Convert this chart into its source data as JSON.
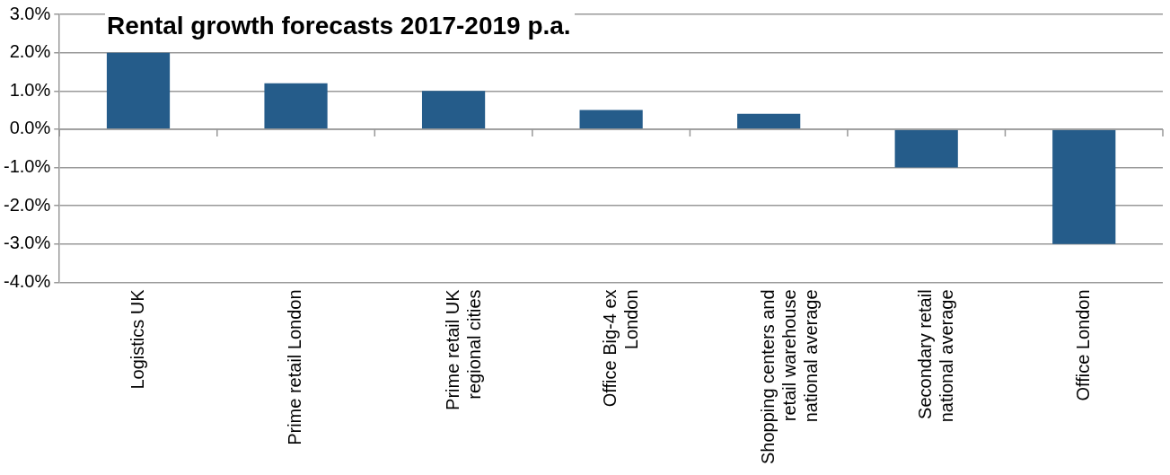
{
  "chart_data": {
    "type": "bar",
    "title": "Rental growth forecasts 2017-2019 p.a.",
    "categories": [
      "Logistics UK",
      "Prime retail London",
      "Prime retail UK\nregional cities",
      "Office Big-4 ex\nLondon",
      "Shopping centers and\nretail warehouse\nnational average",
      "Secondary retail\nnational average",
      "Office London"
    ],
    "values": [
      2.0,
      1.2,
      1.0,
      0.5,
      0.4,
      -1.0,
      -3.0
    ],
    "color": "#255c8a",
    "ylim": [
      -4,
      3
    ],
    "yticks": [
      {
        "value": 3,
        "label": "3.0%"
      },
      {
        "value": 2,
        "label": "2.0%"
      },
      {
        "value": 1,
        "label": "1.0%"
      },
      {
        "value": 0,
        "label": "0.0%"
      },
      {
        "value": -1,
        "label": "-1.0%"
      },
      {
        "value": -2,
        "label": "-2.0%"
      },
      {
        "value": -3,
        "label": "-3.0%"
      },
      {
        "value": -4,
        "label": "-4.0%"
      }
    ],
    "grid": "y"
  }
}
